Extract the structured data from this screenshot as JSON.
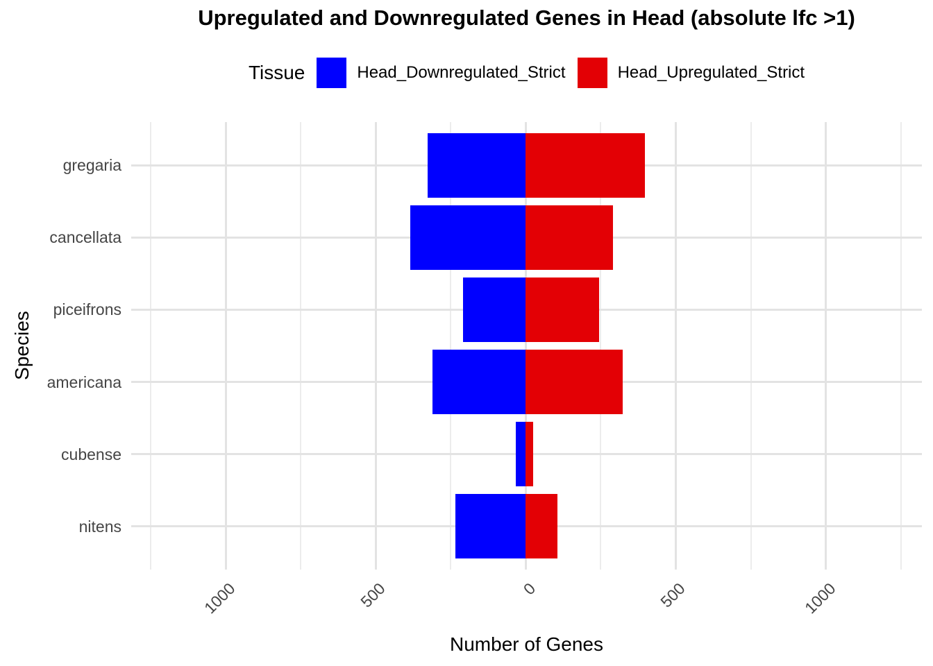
{
  "title": "Upregulated and Downregulated Genes in Head (absolute lfc >1)",
  "legend": {
    "title": "Tissue",
    "items": [
      {
        "label": "Head_Downregulated_Strict",
        "color": "#0000FF"
      },
      {
        "label": "Head_Upregulated_Strict",
        "color": "#E30005"
      }
    ]
  },
  "chart_data": {
    "type": "bar",
    "variant": "horizontal-diverging",
    "title": "Upregulated and Downregulated Genes in Head (absolute lfc >1)",
    "xlabel": "Number of Genes",
    "ylabel": "Species",
    "categories": [
      "gregaria",
      "cancellata",
      "piceifrons",
      "americana",
      "cubense",
      "nitens"
    ],
    "series": [
      {
        "name": "Head_Downregulated_Strict",
        "color": "#0000FF",
        "direction": "negative",
        "values": [
          328,
          385,
          210,
          311,
          33,
          234
        ]
      },
      {
        "name": "Head_Upregulated_Strict",
        "color": "#E30005",
        "direction": "positive",
        "values": [
          397,
          291,
          245,
          322,
          25,
          105
        ]
      }
    ],
    "x_axis": {
      "range": [
        -1315,
        1320
      ],
      "major_ticks": [
        -1000,
        -500,
        0,
        500,
        1000
      ],
      "major_tick_labels": [
        "1000",
        "500",
        "0",
        "500",
        "1000"
      ],
      "minor_ticks": [
        -1250,
        -750,
        -250,
        250,
        750,
        1250
      ],
      "tick_label_rotation_deg": 45
    },
    "grid": true,
    "legend_position": "top",
    "bar_width_fraction": 0.9
  },
  "colors": {
    "background": "#FFFFFF",
    "grid_major": "#E3E3E3",
    "grid_minor": "#ECECEC",
    "axis_text": "#454545",
    "title_text": "#000000"
  }
}
